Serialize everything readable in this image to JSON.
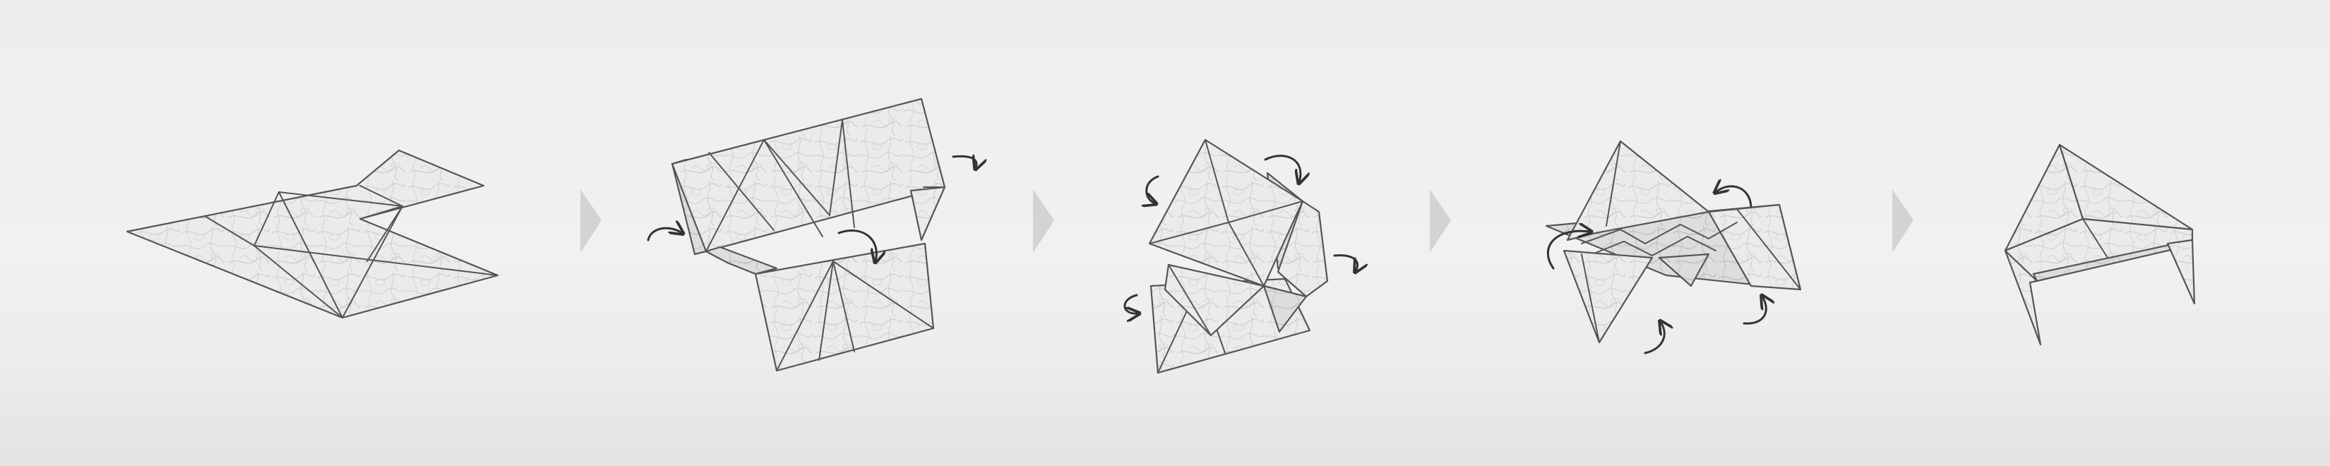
{
  "diagram": {
    "type": "folding-sequence",
    "steps": [
      {
        "id": 1,
        "state": "flat net",
        "arrows": 0
      },
      {
        "id": 2,
        "state": "first folds",
        "arrows": 3
      },
      {
        "id": 3,
        "state": "partially folded",
        "arrows": 4
      },
      {
        "id": 4,
        "state": "nearly folded",
        "arrows": 4
      },
      {
        "id": 5,
        "state": "finished form",
        "arrows": 0
      }
    ],
    "step_separator_icon": "chevron-right-icon",
    "fold_arrow_icon": "curved-arrow-icon"
  },
  "colors": {
    "background": "#efefef",
    "paper": "#ebebeb",
    "edge": "#555555",
    "arrow": "#333333",
    "chevron": "#d3d3d3"
  }
}
